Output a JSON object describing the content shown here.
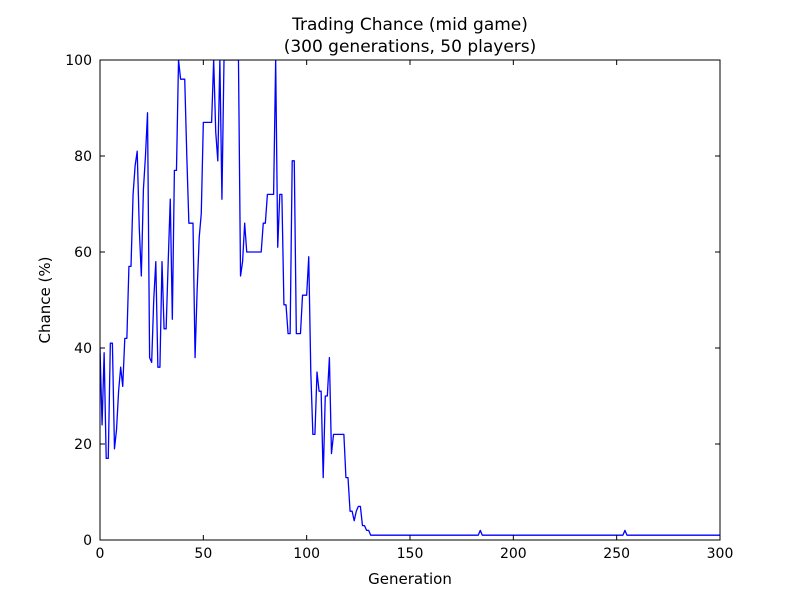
{
  "chart_data": {
    "type": "line",
    "title": "Trading Chance (mid game)",
    "subtitle": "(300 generations, 50 players)",
    "x_label": "Generation",
    "y_label": "Chance (%)",
    "xlim": [
      0,
      300
    ],
    "xticks": [
      0,
      50,
      100,
      150,
      200,
      250,
      300
    ],
    "ylim": [
      0,
      100
    ],
    "yticks": [
      0,
      20,
      40,
      60,
      80,
      100
    ],
    "grid": false,
    "series": [
      {
        "color": "#0000ff",
        "x": [
          0,
          1,
          2,
          3,
          4,
          5,
          6,
          7,
          8,
          9,
          10,
          11,
          12,
          13,
          14,
          15,
          16,
          17,
          18,
          19,
          20,
          21,
          22,
          23,
          24,
          25,
          26,
          27,
          28,
          29,
          30,
          31,
          32,
          33,
          34,
          35,
          36,
          37,
          38,
          39,
          40,
          41,
          42,
          43,
          44,
          45,
          46,
          47,
          48,
          49,
          50,
          51,
          52,
          53,
          54,
          55,
          56,
          57,
          58,
          59,
          60,
          67,
          68,
          69,
          70,
          71,
          78,
          79,
          80,
          81,
          84,
          85,
          86,
          87,
          88,
          89,
          90,
          91,
          92,
          93,
          94,
          95,
          97,
          98,
          100,
          101,
          102,
          103,
          104,
          105,
          106,
          107,
          108,
          109,
          110,
          111,
          112,
          113,
          118,
          119,
          120,
          121,
          122,
          123,
          124,
          125,
          126,
          127,
          128,
          129,
          130,
          131,
          183,
          184,
          185,
          253,
          254,
          255,
          300
        ],
        "values": [
          40,
          24,
          39,
          17,
          17,
          41,
          41,
          19,
          23,
          31,
          36,
          32,
          42,
          42,
          57,
          57,
          72,
          78,
          81,
          65,
          55,
          73,
          80,
          89,
          38,
          37,
          50,
          58,
          36,
          36,
          58,
          44,
          44,
          58,
          71,
          46,
          77,
          77,
          100,
          96,
          96,
          96,
          80,
          66,
          66,
          66,
          38,
          52,
          63,
          68,
          87,
          87,
          87,
          87,
          87,
          100,
          85,
          79,
          100,
          71,
          100,
          100,
          55,
          58,
          66,
          60,
          60,
          66,
          66,
          72,
          72,
          100,
          61,
          72,
          72,
          49,
          49,
          43,
          43,
          79,
          79,
          43,
          43,
          51,
          51,
          59,
          35,
          22,
          22,
          35,
          31,
          31,
          13,
          30,
          30,
          38,
          18,
          22,
          22,
          13,
          13,
          6,
          6,
          4,
          6,
          7,
          7,
          3,
          3,
          2,
          2,
          1,
          1,
          2,
          1,
          1,
          2,
          1,
          1
        ]
      }
    ]
  }
}
